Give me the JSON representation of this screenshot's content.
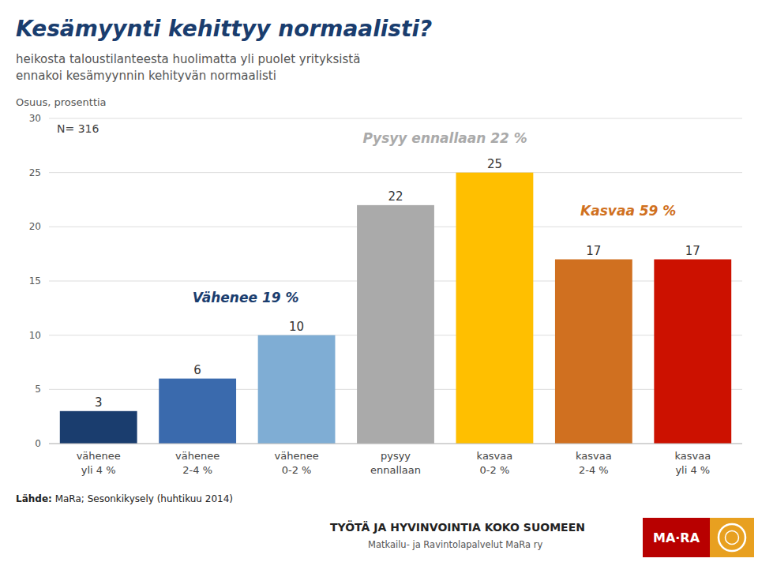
{
  "chart_data": {
    "type": "bar",
    "title": "Kesämyynti kehittyy normaalisti?",
    "subtitle": [
      "heikosta taloustilanteesta huolimatta yli puolet yrityksistä",
      "ennakoi kesämyynnin kehityvän normaalisti"
    ],
    "ylabel": "Osuus, prosenttia",
    "note": "N= 316",
    "categories": [
      "vähenee\nyli 4 %",
      "vähenee\n2-4 %",
      "vähenee\n0-2 %",
      "pysyy\nennallaan",
      "kasvaa\n0-2 %",
      "kasvaa\n2-4 %",
      "kasvaa\nyli 4 %"
    ],
    "values": [
      3,
      6,
      10,
      22,
      25,
      17,
      17
    ],
    "colors": [
      "#1a3d6e",
      "#3a6aad",
      "#7fadd4",
      "#aaaaaa",
      "#ffbf00",
      "#d07020",
      "#cc1100"
    ],
    "ylim": [
      0,
      30
    ],
    "yticks": [
      0,
      5,
      10,
      15,
      20,
      25,
      30
    ],
    "grid": true,
    "data_labels": true,
    "annotations": [
      {
        "text": "Vähenee 19 %",
        "color": "#1a3d6e"
      },
      {
        "text": "Pysyy ennallaan 22 %",
        "color": "#aaaaaa"
      },
      {
        "text": "Kasvaa 59 %",
        "color": "#d07020"
      }
    ],
    "source_label": "Lähde:",
    "source": " MaRa; Sesonkikysely (huhtikuu 2014)",
    "footer": "TYÖTÄ JA HYVINVOINTIA KOKO SUOMEEN",
    "footer_sub": "Matkailu- ja Ravintolapalvelut MaRa ry",
    "logo_text": "MA·RA"
  }
}
